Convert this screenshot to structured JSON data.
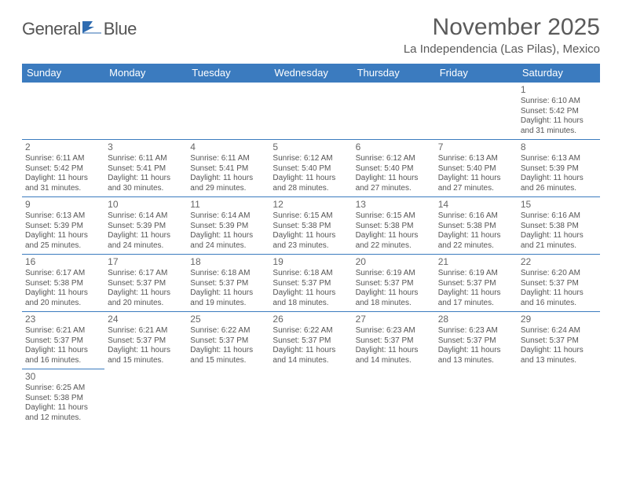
{
  "header": {
    "logo_general": "General",
    "logo_blue": "Blue",
    "month_title": "November 2025",
    "location": "La Independencia (Las Pilas), Mexico"
  },
  "colors": {
    "header_bg": "#3b7bbf",
    "header_fg": "#ffffff",
    "border": "#3b7bbf",
    "text": "#555555",
    "title": "#5a5a5a"
  },
  "weekdays": [
    "Sunday",
    "Monday",
    "Tuesday",
    "Wednesday",
    "Thursday",
    "Friday",
    "Saturday"
  ],
  "cells": [
    [
      null,
      null,
      null,
      null,
      null,
      null,
      {
        "n": "1",
        "sr": "6:10 AM",
        "ss": "5:42 PM",
        "dl": "11 hours and 31 minutes."
      }
    ],
    [
      {
        "n": "2",
        "sr": "6:11 AM",
        "ss": "5:42 PM",
        "dl": "11 hours and 31 minutes."
      },
      {
        "n": "3",
        "sr": "6:11 AM",
        "ss": "5:41 PM",
        "dl": "11 hours and 30 minutes."
      },
      {
        "n": "4",
        "sr": "6:11 AM",
        "ss": "5:41 PM",
        "dl": "11 hours and 29 minutes."
      },
      {
        "n": "5",
        "sr": "6:12 AM",
        "ss": "5:40 PM",
        "dl": "11 hours and 28 minutes."
      },
      {
        "n": "6",
        "sr": "6:12 AM",
        "ss": "5:40 PM",
        "dl": "11 hours and 27 minutes."
      },
      {
        "n": "7",
        "sr": "6:13 AM",
        "ss": "5:40 PM",
        "dl": "11 hours and 27 minutes."
      },
      {
        "n": "8",
        "sr": "6:13 AM",
        "ss": "5:39 PM",
        "dl": "11 hours and 26 minutes."
      }
    ],
    [
      {
        "n": "9",
        "sr": "6:13 AM",
        "ss": "5:39 PM",
        "dl": "11 hours and 25 minutes."
      },
      {
        "n": "10",
        "sr": "6:14 AM",
        "ss": "5:39 PM",
        "dl": "11 hours and 24 minutes."
      },
      {
        "n": "11",
        "sr": "6:14 AM",
        "ss": "5:39 PM",
        "dl": "11 hours and 24 minutes."
      },
      {
        "n": "12",
        "sr": "6:15 AM",
        "ss": "5:38 PM",
        "dl": "11 hours and 23 minutes."
      },
      {
        "n": "13",
        "sr": "6:15 AM",
        "ss": "5:38 PM",
        "dl": "11 hours and 22 minutes."
      },
      {
        "n": "14",
        "sr": "6:16 AM",
        "ss": "5:38 PM",
        "dl": "11 hours and 22 minutes."
      },
      {
        "n": "15",
        "sr": "6:16 AM",
        "ss": "5:38 PM",
        "dl": "11 hours and 21 minutes."
      }
    ],
    [
      {
        "n": "16",
        "sr": "6:17 AM",
        "ss": "5:38 PM",
        "dl": "11 hours and 20 minutes."
      },
      {
        "n": "17",
        "sr": "6:17 AM",
        "ss": "5:37 PM",
        "dl": "11 hours and 20 minutes."
      },
      {
        "n": "18",
        "sr": "6:18 AM",
        "ss": "5:37 PM",
        "dl": "11 hours and 19 minutes."
      },
      {
        "n": "19",
        "sr": "6:18 AM",
        "ss": "5:37 PM",
        "dl": "11 hours and 18 minutes."
      },
      {
        "n": "20",
        "sr": "6:19 AM",
        "ss": "5:37 PM",
        "dl": "11 hours and 18 minutes."
      },
      {
        "n": "21",
        "sr": "6:19 AM",
        "ss": "5:37 PM",
        "dl": "11 hours and 17 minutes."
      },
      {
        "n": "22",
        "sr": "6:20 AM",
        "ss": "5:37 PM",
        "dl": "11 hours and 16 minutes."
      }
    ],
    [
      {
        "n": "23",
        "sr": "6:21 AM",
        "ss": "5:37 PM",
        "dl": "11 hours and 16 minutes."
      },
      {
        "n": "24",
        "sr": "6:21 AM",
        "ss": "5:37 PM",
        "dl": "11 hours and 15 minutes."
      },
      {
        "n": "25",
        "sr": "6:22 AM",
        "ss": "5:37 PM",
        "dl": "11 hours and 15 minutes."
      },
      {
        "n": "26",
        "sr": "6:22 AM",
        "ss": "5:37 PM",
        "dl": "11 hours and 14 minutes."
      },
      {
        "n": "27",
        "sr": "6:23 AM",
        "ss": "5:37 PM",
        "dl": "11 hours and 14 minutes."
      },
      {
        "n": "28",
        "sr": "6:23 AM",
        "ss": "5:37 PM",
        "dl": "11 hours and 13 minutes."
      },
      {
        "n": "29",
        "sr": "6:24 AM",
        "ss": "5:37 PM",
        "dl": "11 hours and 13 minutes."
      }
    ],
    [
      {
        "n": "30",
        "sr": "6:25 AM",
        "ss": "5:38 PM",
        "dl": "11 hours and 12 minutes."
      },
      null,
      null,
      null,
      null,
      null,
      null
    ]
  ],
  "labels": {
    "sunrise": "Sunrise:",
    "sunset": "Sunset:",
    "daylight": "Daylight:"
  }
}
